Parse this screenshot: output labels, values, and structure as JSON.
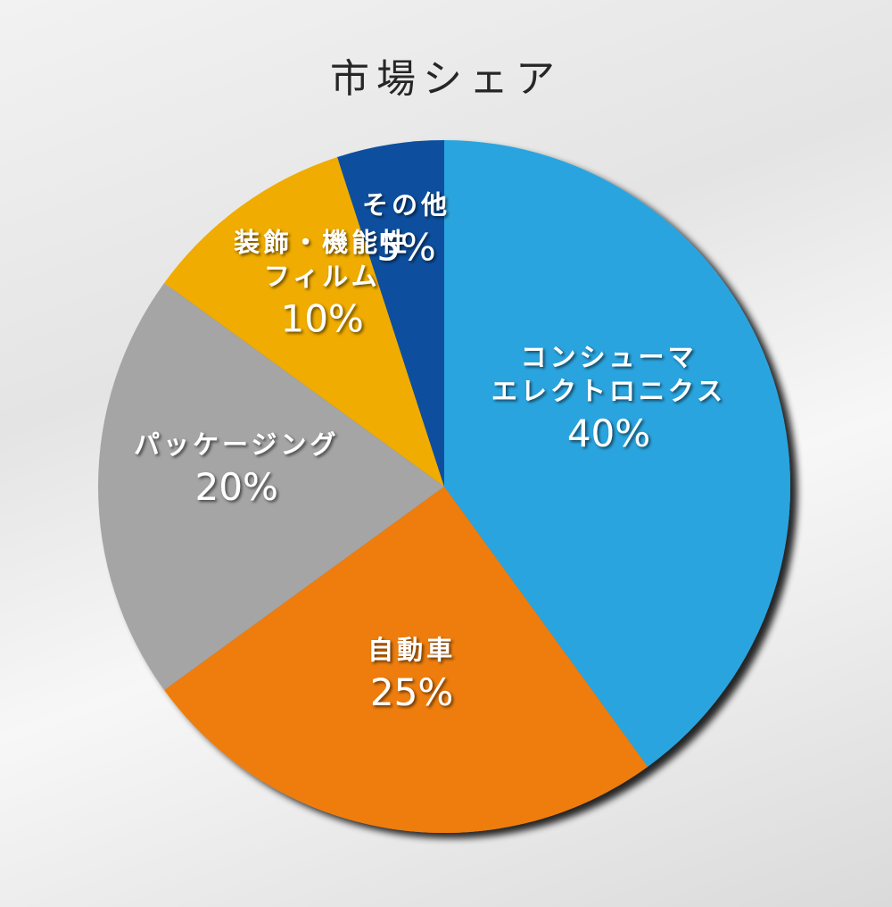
{
  "chart_data": {
    "type": "pie",
    "title": "市場シェア",
    "slices": [
      {
        "name_lines": [
          "コンシューマ",
          "エレクトロニクス"
        ],
        "value": 40,
        "value_label": "40%",
        "color": "#2ca4df"
      },
      {
        "name_lines": [
          "自動車"
        ],
        "value": 25,
        "value_label": "25%",
        "color": "#ee7d0f"
      },
      {
        "name_lines": [
          "パッケージング"
        ],
        "value": 20,
        "value_label": "20%",
        "color": "#a5a5a5"
      },
      {
        "name_lines": [
          "装飾・機能性",
          "フィルム"
        ],
        "value": 10,
        "value_label": "10%",
        "color": "#f0ac00"
      },
      {
        "name_lines": [
          "その他"
        ],
        "value": 5,
        "value_label": "5%",
        "color": "#0a4f9e"
      }
    ],
    "start_angle_deg": 0,
    "direction": "clockwise",
    "legend": "none"
  }
}
